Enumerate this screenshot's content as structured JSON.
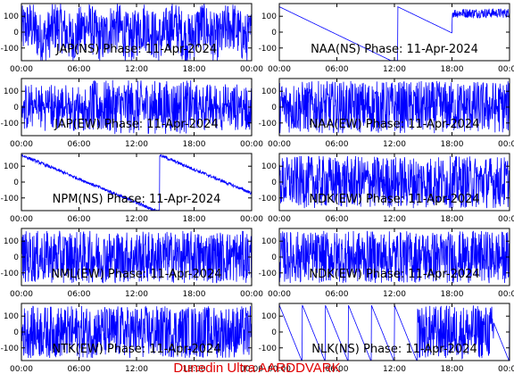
{
  "footer": "Dunedin Ultra AARDDVARK",
  "colors": {
    "trace": "#0000ff",
    "footer": "#e00000",
    "axis": "#000000"
  },
  "chart_data": [
    {
      "type": "line",
      "title": "JAP(NS) Phase: 11-Apr-2024",
      "pattern": "dense-high",
      "ylim": [
        -180,
        180
      ],
      "yticks": [
        "100",
        "0",
        "-100"
      ],
      "xlim": [
        "00:00",
        "24:00"
      ],
      "xticks": [
        "00:00",
        "06:00",
        "12:00",
        "18:00",
        "00:00"
      ]
    },
    {
      "type": "line",
      "title": "NAA(NS) Phase: 11-Apr-2024",
      "pattern": "drift-bowl",
      "ylim": [
        -180,
        180
      ],
      "yticks": [
        "100",
        "0",
        "-100"
      ],
      "xlim": [
        "00:00",
        "24:00"
      ],
      "xticks": [
        "00:00",
        "06:00",
        "12:00",
        "18:00",
        "00:00"
      ]
    },
    {
      "type": "line",
      "title": "JAP(EW) Phase: 11-Apr-2024",
      "pattern": "dense-middle",
      "ylim": [
        -180,
        180
      ],
      "yticks": [
        "100",
        "0",
        "-100"
      ],
      "xlim": [
        "00:00",
        "24:00"
      ],
      "xticks": [
        "00:00",
        "06:00",
        "12:00",
        "18:00",
        "00:00"
      ]
    },
    {
      "type": "line",
      "title": "NAA(EW) Phase: 11-Apr-2024",
      "pattern": "noisy-wrap",
      "ylim": [
        -180,
        180
      ],
      "yticks": [
        "100",
        "0",
        "-100"
      ],
      "xlim": [
        "00:00",
        "24:00"
      ],
      "xticks": [
        "00:00",
        "06:00",
        "12:00",
        "18:00",
        "00:00"
      ]
    },
    {
      "type": "line",
      "title": "NPM(NS) Phase: 11-Apr-2024",
      "pattern": "drift-down",
      "ylim": [
        -180,
        180
      ],
      "yticks": [
        "100",
        "0",
        "-100"
      ],
      "xlim": [
        "00:00",
        "24:00"
      ],
      "xticks": [
        "00:00",
        "06:00",
        "12:00",
        "18:00",
        "00:00"
      ]
    },
    {
      "type": "line",
      "title": "NDK(EW) Phase: 11-Apr-2024",
      "pattern": "noisy-wrap",
      "ylim": [
        -180,
        180
      ],
      "yticks": [
        "100",
        "0",
        "-100"
      ],
      "xlim": [
        "00:00",
        "24:00"
      ],
      "xticks": [
        "00:00",
        "06:00",
        "12:00",
        "18:00",
        "00:00"
      ]
    },
    {
      "type": "line",
      "title": "NML(EW) Phase: 11-Apr-2024",
      "pattern": "noisy-wrap",
      "ylim": [
        -180,
        180
      ],
      "yticks": [
        "100",
        "0",
        "-100"
      ],
      "xlim": [
        "00:00",
        "24:00"
      ],
      "xticks": [
        "00:00",
        "06:00",
        "12:00",
        "18:00",
        "00:00"
      ]
    },
    {
      "type": "line",
      "title": "NDK(EW) Phase: 11-Apr-2024",
      "pattern": "noisy-wrap",
      "ylim": [
        -180,
        180
      ],
      "yticks": [
        "100",
        "0",
        "-100"
      ],
      "xlim": [
        "00:00",
        "24:00"
      ],
      "xticks": [
        "00:00",
        "06:00",
        "12:00",
        "18:00",
        "00:00"
      ]
    },
    {
      "type": "line",
      "title": "NTK(EW) Phase: 11-Apr-2024",
      "pattern": "noisy-wrap",
      "ylim": [
        -180,
        180
      ],
      "yticks": [
        "100",
        "0",
        "-100"
      ],
      "xlim": [
        "00:00",
        "24:00"
      ],
      "xticks": [
        "00:00",
        "06:00",
        "12:00",
        "18:00",
        "00:00"
      ]
    },
    {
      "type": "line",
      "title": "NLK(NS) Phase: 11-Apr-2024",
      "pattern": "sawtooth-block",
      "ylim": [
        -180,
        180
      ],
      "yticks": [
        "100",
        "0",
        "-100"
      ],
      "xlim": [
        "00:00",
        "24:00"
      ],
      "xticks": [
        "00:00",
        "06:00",
        "12:00",
        "18:00",
        "00:00"
      ]
    }
  ]
}
